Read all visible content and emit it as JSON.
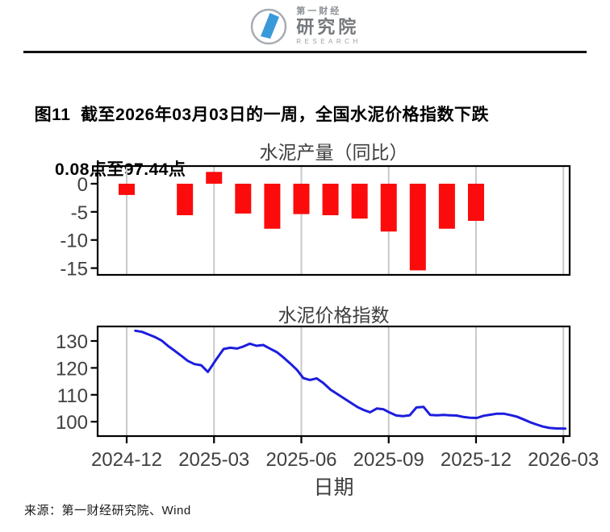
{
  "header": {
    "logo": {
      "line1": "第一财经",
      "line2": "研究院",
      "line3": "RESEARCH"
    }
  },
  "figure": {
    "title_line1": "图11  截至2026年03月03日的一周，全国水泥价格指数下跌",
    "title_line2": "0.08点至97.44点"
  },
  "source": "来源：第一财经研究院、Wind",
  "colors": {
    "bar": "#fb0b0b",
    "line": "#1d1dde",
    "grid": "#c9c9c9",
    "frame": "#000000",
    "tick_text": "#404040",
    "logo_blue": "#3a9ad9",
    "logo_gray": "#a7adb3"
  },
  "chart_data": [
    {
      "type": "bar",
      "title": "水泥产量（同比）",
      "categories": [
        "2024-12",
        "2025-02",
        "2025-03",
        "2025-04",
        "2025-05",
        "2025-06",
        "2025-07",
        "2025-08",
        "2025-09",
        "2025-10",
        "2025-11",
        "2025-12"
      ],
      "values": [
        -2.0,
        -5.6,
        2.1,
        -5.3,
        -8.0,
        -5.4,
        -5.6,
        -6.2,
        -8.5,
        -15.4,
        -8.0,
        -6.6
      ],
      "yticks": [
        0,
        -5,
        -10,
        -15
      ],
      "ylim": [
        -16.2,
        3.14
      ],
      "grid_x": [
        "2024-12",
        "2025-03",
        "2025-06",
        "2025-09",
        "2025-12",
        "2026-03"
      ],
      "xlabel": "",
      "legend": "none",
      "grid": "vertical-only"
    },
    {
      "type": "line",
      "title": "水泥价格指数",
      "xlabel": "日期",
      "yticks": [
        100,
        110,
        120,
        130
      ],
      "ylim": [
        94.66,
        135.4
      ],
      "xticks": [
        "2024-12",
        "2025-03",
        "2025-06",
        "2025-09",
        "2025-12",
        "2026-03"
      ],
      "grid": "vertical-only",
      "legend": "none",
      "points": [
        [
          "2024-12-10",
          133.8
        ],
        [
          "2024-12-17",
          133.4
        ],
        [
          "2024-12-24",
          132.4
        ],
        [
          "2024-12-31",
          131.4
        ],
        [
          "2025-01-07",
          130.2
        ],
        [
          "2025-01-14",
          128.1
        ],
        [
          "2025-01-21",
          126.3
        ],
        [
          "2025-01-28",
          124.4
        ],
        [
          "2025-02-04",
          122.6
        ],
        [
          "2025-02-11",
          121.4
        ],
        [
          "2025-02-18",
          121.0
        ],
        [
          "2025-02-25",
          118.5
        ],
        [
          "2025-03-04",
          123.5
        ],
        [
          "2025-03-11",
          127.0
        ],
        [
          "2025-03-18",
          127.5
        ],
        [
          "2025-03-25",
          127.2
        ],
        [
          "2025-04-01",
          127.9
        ],
        [
          "2025-04-08",
          129.0
        ],
        [
          "2025-04-15",
          128.2
        ],
        [
          "2025-04-22",
          128.5
        ],
        [
          "2025-04-29",
          127.2
        ],
        [
          "2025-05-06",
          125.8
        ],
        [
          "2025-05-13",
          123.8
        ],
        [
          "2025-05-20",
          121.6
        ],
        [
          "2025-05-27",
          119.2
        ],
        [
          "2025-06-03",
          116.2
        ],
        [
          "2025-06-10",
          115.5
        ],
        [
          "2025-06-17",
          116.1
        ],
        [
          "2025-06-24",
          114.4
        ],
        [
          "2025-07-01",
          111.9
        ],
        [
          "2025-07-08",
          110.3
        ],
        [
          "2025-07-15",
          108.7
        ],
        [
          "2025-07-22",
          107.1
        ],
        [
          "2025-07-29",
          105.5
        ],
        [
          "2025-08-05",
          104.4
        ],
        [
          "2025-08-12",
          103.5
        ],
        [
          "2025-08-19",
          104.9
        ],
        [
          "2025-08-26",
          104.6
        ],
        [
          "2025-09-02",
          103.4
        ],
        [
          "2025-09-09",
          102.3
        ],
        [
          "2025-09-16",
          102.1
        ],
        [
          "2025-09-23",
          102.4
        ],
        [
          "2025-09-30",
          105.3
        ],
        [
          "2025-10-07",
          105.5
        ],
        [
          "2025-10-14",
          102.5
        ],
        [
          "2025-10-21",
          102.4
        ],
        [
          "2025-10-28",
          102.5
        ],
        [
          "2025-11-04",
          102.4
        ],
        [
          "2025-11-11",
          102.3
        ],
        [
          "2025-11-18",
          101.8
        ],
        [
          "2025-11-25",
          101.5
        ],
        [
          "2025-12-02",
          101.4
        ],
        [
          "2025-12-09",
          102.2
        ],
        [
          "2025-12-16",
          102.6
        ],
        [
          "2025-12-23",
          103.0
        ],
        [
          "2025-12-30",
          103.0
        ],
        [
          "2026-01-06",
          102.5
        ],
        [
          "2026-01-13",
          101.9
        ],
        [
          "2026-01-20",
          100.9
        ],
        [
          "2026-01-27",
          99.8
        ],
        [
          "2026-02-03",
          99.0
        ],
        [
          "2026-02-10",
          98.2
        ],
        [
          "2026-02-17",
          97.7
        ],
        [
          "2026-02-24",
          97.5
        ],
        [
          "2026-03-03",
          97.44
        ]
      ]
    }
  ]
}
